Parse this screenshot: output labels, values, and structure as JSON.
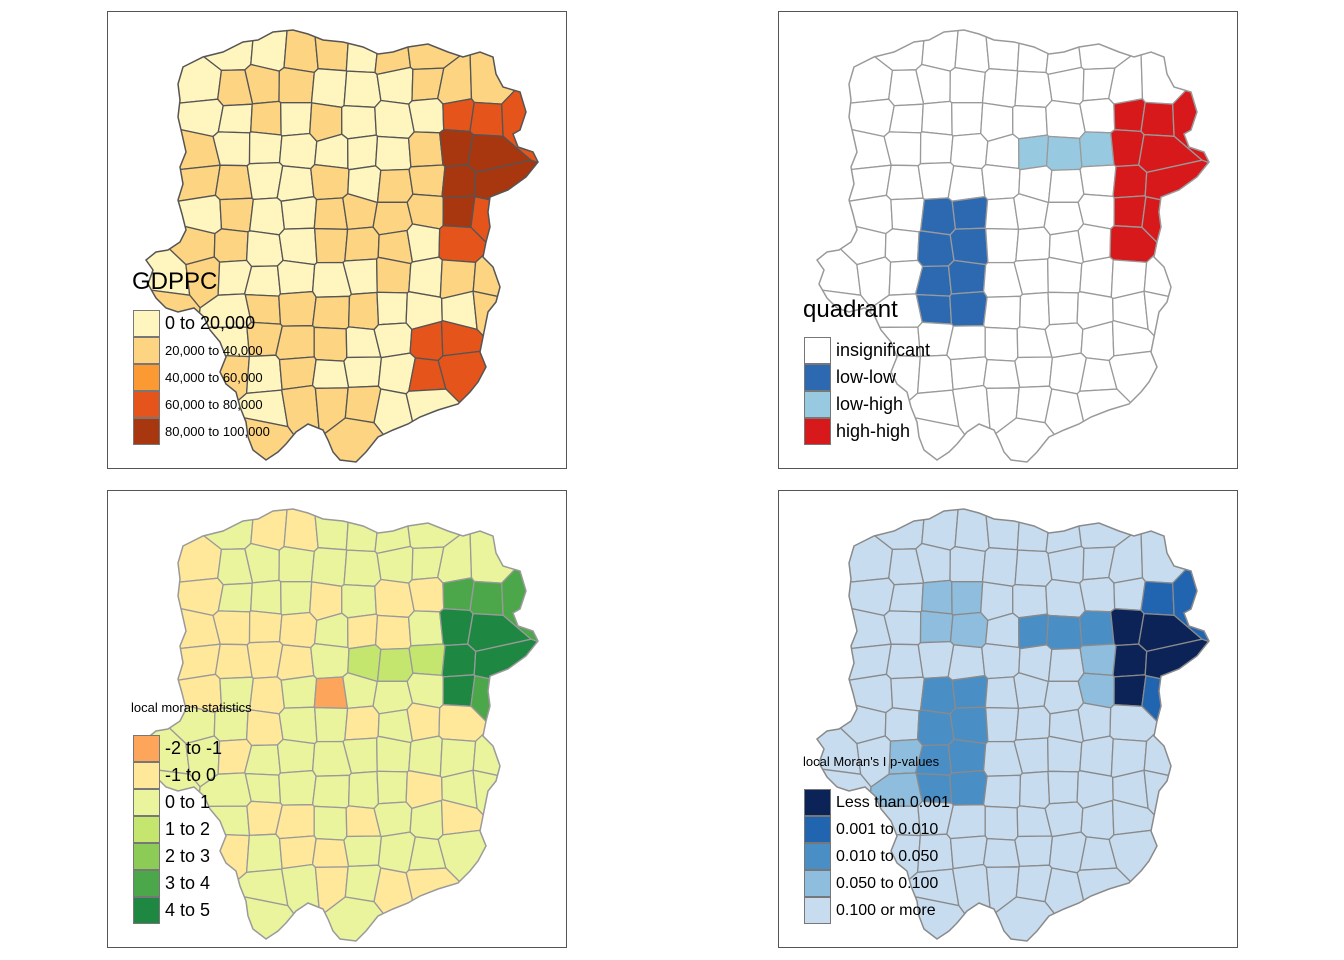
{
  "panels": [
    {
      "id": "gdppc",
      "legend_title": "GDPPC",
      "border_color": "#555555",
      "legend": [
        {
          "label": "0 to 20,000",
          "color": "#FFF5BF"
        },
        {
          "label": "20,000 to 40,000",
          "color": "#FCD482"
        },
        {
          "label": "40,000 to 60,000",
          "color": "#FB9A32"
        },
        {
          "label": "60,000 to 80,000",
          "color": "#E5541A"
        },
        {
          "label": "80,000 to 100,000",
          "color": "#A8360F"
        }
      ]
    },
    {
      "id": "quadrant",
      "legend_title": "quadrant",
      "border_color": "#9A9A9A",
      "legend": [
        {
          "label": "insignificant",
          "color": "#FFFFFF"
        },
        {
          "label": "low-low",
          "color": "#2C69B0"
        },
        {
          "label": "low-high",
          "color": "#97CAE1"
        },
        {
          "label": "high-high",
          "color": "#D7191C"
        }
      ]
    },
    {
      "id": "localmoran",
      "legend_title": "local moran statistics",
      "border_color": "#9A9A9A",
      "legend": [
        {
          "label": "-2 to -1",
          "color": "#FDA55A"
        },
        {
          "label": "-1 to 0",
          "color": "#FFE89A"
        },
        {
          "label": "0 to 1",
          "color": "#EAF49C"
        },
        {
          "label": "1 to 2",
          "color": "#C4E66E"
        },
        {
          "label": "2 to 3",
          "color": "#8CCB56"
        },
        {
          "label": "3 to 4",
          "color": "#4CA64A"
        },
        {
          "label": "4 to 5",
          "color": "#1E8741"
        }
      ]
    },
    {
      "id": "pvalues",
      "legend_title": "local Moran's I p-values",
      "border_color": "#8A8A8A",
      "legend": [
        {
          "label": "Less than 0.001",
          "color": "#0B2357"
        },
        {
          "label": "0.001 to 0.010",
          "color": "#2164B0"
        },
        {
          "label": "0.010 to 0.050",
          "color": "#4A8EC6"
        },
        {
          "label": "0.050 to 0.100",
          "color": "#8FBDDD"
        },
        {
          "label": "0.100 or more",
          "color": "#C8DCEF"
        }
      ]
    }
  ]
}
